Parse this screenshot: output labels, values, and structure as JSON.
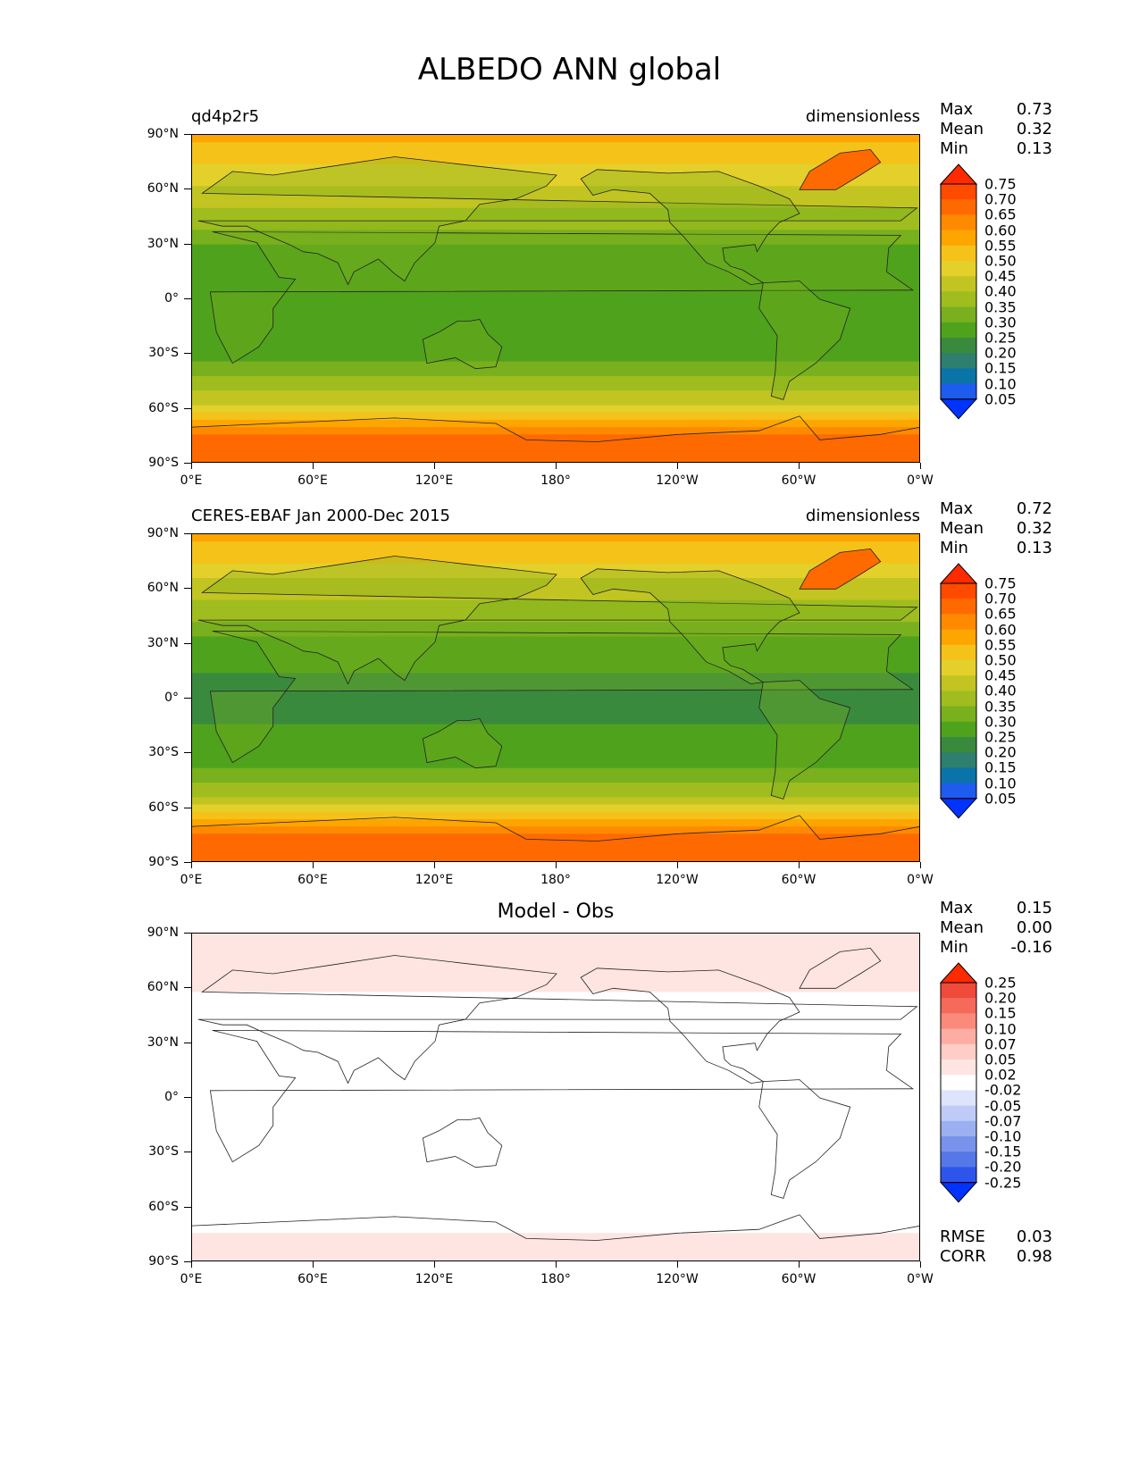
{
  "figure": {
    "title": "ALBEDO ANN global"
  },
  "x_ticks": [
    "0°E",
    "60°E",
    "120°E",
    "180°",
    "120°W",
    "60°W",
    "0°W"
  ],
  "y_ticks": [
    "90°N",
    "60°N",
    "30°N",
    "0°",
    "30°S",
    "60°S",
    "90°S"
  ],
  "panels": [
    {
      "left_title": "qd4p2r5",
      "center_title": "",
      "right_title": "dimensionless",
      "stats": {
        "max_label": "Max",
        "max": "0.73",
        "mean_label": "Mean",
        "mean": "0.32",
        "min_label": "Min",
        "min": "0.13"
      },
      "levels": [
        "0.75",
        "0.70",
        "0.65",
        "0.60",
        "0.55",
        "0.50",
        "0.45",
        "0.40",
        "0.35",
        "0.30",
        "0.25",
        "0.20",
        "0.15",
        "0.10",
        "0.05"
      ],
      "colors": [
        "#ff2a00",
        "#ff4b00",
        "#ff6a00",
        "#ff8a00",
        "#ffa500",
        "#f5c21a",
        "#e4d02a",
        "#c2c422",
        "#9fbd1e",
        "#78b01e",
        "#4fa21c",
        "#3a8a3e",
        "#2e7f6e",
        "#0a74a8",
        "#1e5bef",
        "#0033ff"
      ]
    },
    {
      "left_title": "CERES-EBAF Jan 2000-Dec 2015",
      "center_title": "",
      "right_title": "dimensionless",
      "stats": {
        "max_label": "Max",
        "max": "0.72",
        "mean_label": "Mean",
        "mean": "0.32",
        "min_label": "Min",
        "min": "0.13"
      },
      "levels": [
        "0.75",
        "0.70",
        "0.65",
        "0.60",
        "0.55",
        "0.50",
        "0.45",
        "0.40",
        "0.35",
        "0.30",
        "0.25",
        "0.20",
        "0.15",
        "0.10",
        "0.05"
      ],
      "colors": [
        "#ff2a00",
        "#ff4b00",
        "#ff6a00",
        "#ff8a00",
        "#ffa500",
        "#f5c21a",
        "#e4d02a",
        "#c2c422",
        "#9fbd1e",
        "#78b01e",
        "#4fa21c",
        "#3a8a3e",
        "#2e7f6e",
        "#0a74a8",
        "#1e5bef",
        "#0033ff"
      ]
    },
    {
      "left_title": "",
      "center_title": "Model - Obs",
      "right_title": "",
      "stats": {
        "max_label": "Max",
        "max": "0.15",
        "mean_label": "Mean",
        "mean": "0.00",
        "min_label": "Min",
        "min": "-0.16"
      },
      "levels": [
        "0.25",
        "0.20",
        "0.15",
        "0.10",
        "0.07",
        "0.05",
        "0.02",
        "-0.02",
        "-0.05",
        "-0.07",
        "-0.10",
        "-0.15",
        "-0.20",
        "-0.25"
      ],
      "colors": [
        "#ff2a00",
        "#f04a3a",
        "#f56a5a",
        "#fa8a7a",
        "#fcaea4",
        "#fdcdc6",
        "#fee5e1",
        "#ffffff",
        "#dde4fb",
        "#bfcbf6",
        "#9cb0f1",
        "#7993ec",
        "#5577e8",
        "#2d55ec",
        "#0033ff"
      ],
      "extra": {
        "rmse_label": "RMSE",
        "rmse": "0.03",
        "corr_label": "CORR",
        "corr": "0.98"
      }
    }
  ],
  "chart_data": [
    {
      "type": "heatmap",
      "title": "ALBEDO ANN global",
      "subtitle": "qd4p2r5",
      "units": "dimensionless",
      "xlim": [
        0,
        360
      ],
      "ylim": [
        -90,
        90
      ],
      "zonal_mean_lat": [
        90,
        75,
        60,
        45,
        30,
        15,
        0,
        -15,
        -30,
        -45,
        -60,
        -75,
        -90
      ],
      "zonal_mean_albedo": [
        0.58,
        0.5,
        0.44,
        0.38,
        0.3,
        0.27,
        0.26,
        0.26,
        0.28,
        0.36,
        0.47,
        0.68,
        0.7
      ],
      "max": 0.73,
      "mean": 0.32,
      "min": 0.13,
      "colorbar_levels": [
        0.05,
        0.1,
        0.15,
        0.2,
        0.25,
        0.3,
        0.35,
        0.4,
        0.45,
        0.5,
        0.55,
        0.6,
        0.65,
        0.7,
        0.75
      ]
    },
    {
      "type": "heatmap",
      "title": "ALBEDO ANN global",
      "subtitle": "CERES-EBAF Jan 2000-Dec 2015",
      "units": "dimensionless",
      "xlim": [
        0,
        360
      ],
      "ylim": [
        -90,
        90
      ],
      "zonal_mean_lat": [
        90,
        75,
        60,
        45,
        30,
        15,
        0,
        -15,
        -30,
        -45,
        -60,
        -75,
        -90
      ],
      "zonal_mean_albedo": [
        0.56,
        0.5,
        0.43,
        0.37,
        0.28,
        0.25,
        0.24,
        0.25,
        0.27,
        0.34,
        0.46,
        0.66,
        0.68
      ],
      "max": 0.72,
      "mean": 0.32,
      "min": 0.13,
      "colorbar_levels": [
        0.05,
        0.1,
        0.15,
        0.2,
        0.25,
        0.3,
        0.35,
        0.4,
        0.45,
        0.5,
        0.55,
        0.6,
        0.65,
        0.7,
        0.75
      ]
    },
    {
      "type": "heatmap",
      "title": "Model - Obs",
      "xlim": [
        0,
        360
      ],
      "ylim": [
        -90,
        90
      ],
      "zonal_mean_lat": [
        90,
        75,
        60,
        45,
        30,
        15,
        0,
        -15,
        -30,
        -45,
        -60,
        -75,
        -90
      ],
      "zonal_mean_diff": [
        0.02,
        0.03,
        0.02,
        0.01,
        0.02,
        0.01,
        0.01,
        0.0,
        0.01,
        0.02,
        0.01,
        0.02,
        0.02
      ],
      "max": 0.15,
      "mean": 0.0,
      "min": -0.16,
      "rmse": 0.03,
      "corr": 0.98,
      "colorbar_levels": [
        -0.25,
        -0.2,
        -0.15,
        -0.1,
        -0.07,
        -0.05,
        -0.02,
        0.02,
        0.05,
        0.07,
        0.1,
        0.15,
        0.2,
        0.25
      ]
    }
  ]
}
